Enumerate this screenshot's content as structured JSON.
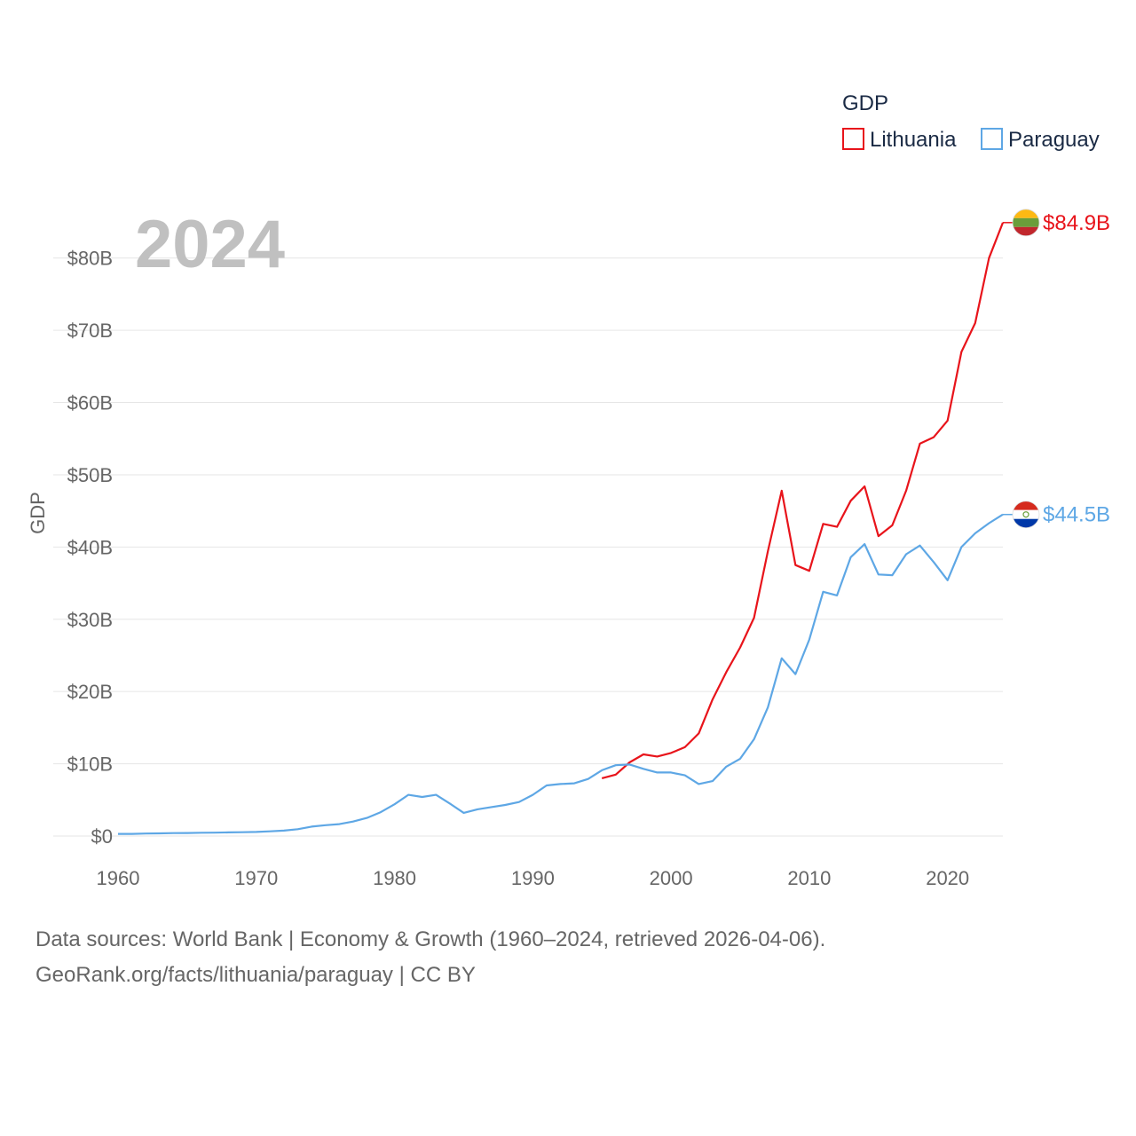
{
  "chart_data": {
    "type": "line",
    "ylabel": "GDP",
    "year_label": "2024",
    "legend": {
      "title": "GDP",
      "placement": "top-right"
    },
    "xlim": [
      1960,
      2024
    ],
    "ylim": [
      0,
      85
    ],
    "x_ticks": [
      "1960",
      "1970",
      "1980",
      "1990",
      "2000",
      "2010",
      "2020"
    ],
    "y_ticks": [
      {
        "value": 0,
        "label": "$0"
      },
      {
        "value": 10,
        "label": "$10B"
      },
      {
        "value": 20,
        "label": "$20B"
      },
      {
        "value": 30,
        "label": "$30B"
      },
      {
        "value": 40,
        "label": "$40B"
      },
      {
        "value": 50,
        "label": "$50B"
      },
      {
        "value": 60,
        "label": "$60B"
      },
      {
        "value": 70,
        "label": "$70B"
      },
      {
        "value": 80,
        "label": "$80B"
      }
    ],
    "series": [
      {
        "name": "Lithuania",
        "color": "#e8141b",
        "end_label": "$84.9B",
        "flag": "lithuania-flag",
        "x": [
          1995,
          1996,
          1997,
          1998,
          1999,
          2000,
          2001,
          2002,
          2003,
          2004,
          2005,
          2006,
          2007,
          2008,
          2009,
          2010,
          2011,
          2012,
          2013,
          2014,
          2015,
          2016,
          2017,
          2018,
          2019,
          2020,
          2021,
          2022,
          2023,
          2024
        ],
        "values": [
          8.0,
          8.5,
          10.2,
          11.3,
          11.0,
          11.5,
          12.3,
          14.2,
          18.9,
          22.7,
          26.1,
          30.2,
          39.4,
          47.8,
          37.5,
          36.7,
          43.2,
          42.8,
          46.4,
          48.4,
          41.5,
          43.0,
          47.8,
          54.3,
          55.2,
          57.5,
          67.0,
          71.0,
          80.0,
          84.9
        ]
      },
      {
        "name": "Paraguay",
        "color": "#5ea7e5",
        "end_label": "$44.5B",
        "flag": "paraguay-flag",
        "x": [
          1960,
          1961,
          1962,
          1963,
          1964,
          1965,
          1966,
          1967,
          1968,
          1969,
          1970,
          1971,
          1972,
          1973,
          1974,
          1975,
          1976,
          1977,
          1978,
          1979,
          1980,
          1981,
          1982,
          1983,
          1984,
          1985,
          1986,
          1987,
          1988,
          1989,
          1990,
          1991,
          1992,
          1993,
          1994,
          1995,
          1996,
          1997,
          1998,
          1999,
          2000,
          2001,
          2002,
          2003,
          2004,
          2005,
          2006,
          2007,
          2008,
          2009,
          2010,
          2011,
          2012,
          2013,
          2014,
          2015,
          2016,
          2017,
          2018,
          2019,
          2020,
          2021,
          2022,
          2023,
          2024
        ],
        "values": [
          0.3,
          0.3,
          0.35,
          0.37,
          0.4,
          0.42,
          0.45,
          0.47,
          0.5,
          0.53,
          0.57,
          0.65,
          0.75,
          0.95,
          1.3,
          1.5,
          1.65,
          2.0,
          2.5,
          3.3,
          4.4,
          5.7,
          5.4,
          5.7,
          4.5,
          3.2,
          3.7,
          4.0,
          4.3,
          4.7,
          5.7,
          7.0,
          7.2,
          7.3,
          7.9,
          9.1,
          9.8,
          9.9,
          9.3,
          8.8,
          8.8,
          8.4,
          7.2,
          7.6,
          9.6,
          10.7,
          13.4,
          17.8,
          24.6,
          22.4,
          27.2,
          33.8,
          33.3,
          38.6,
          40.4,
          36.2,
          36.1,
          39.0,
          40.2,
          37.9,
          35.4,
          40.0,
          41.9,
          43.3,
          44.5
        ]
      }
    ]
  },
  "footer": {
    "line1": "Data sources: World Bank | Economy & Growth (1960–2024, retrieved 2026-04-06).",
    "line2": "GeoRank.org/facts/lithuania/paraguay | CC BY"
  }
}
